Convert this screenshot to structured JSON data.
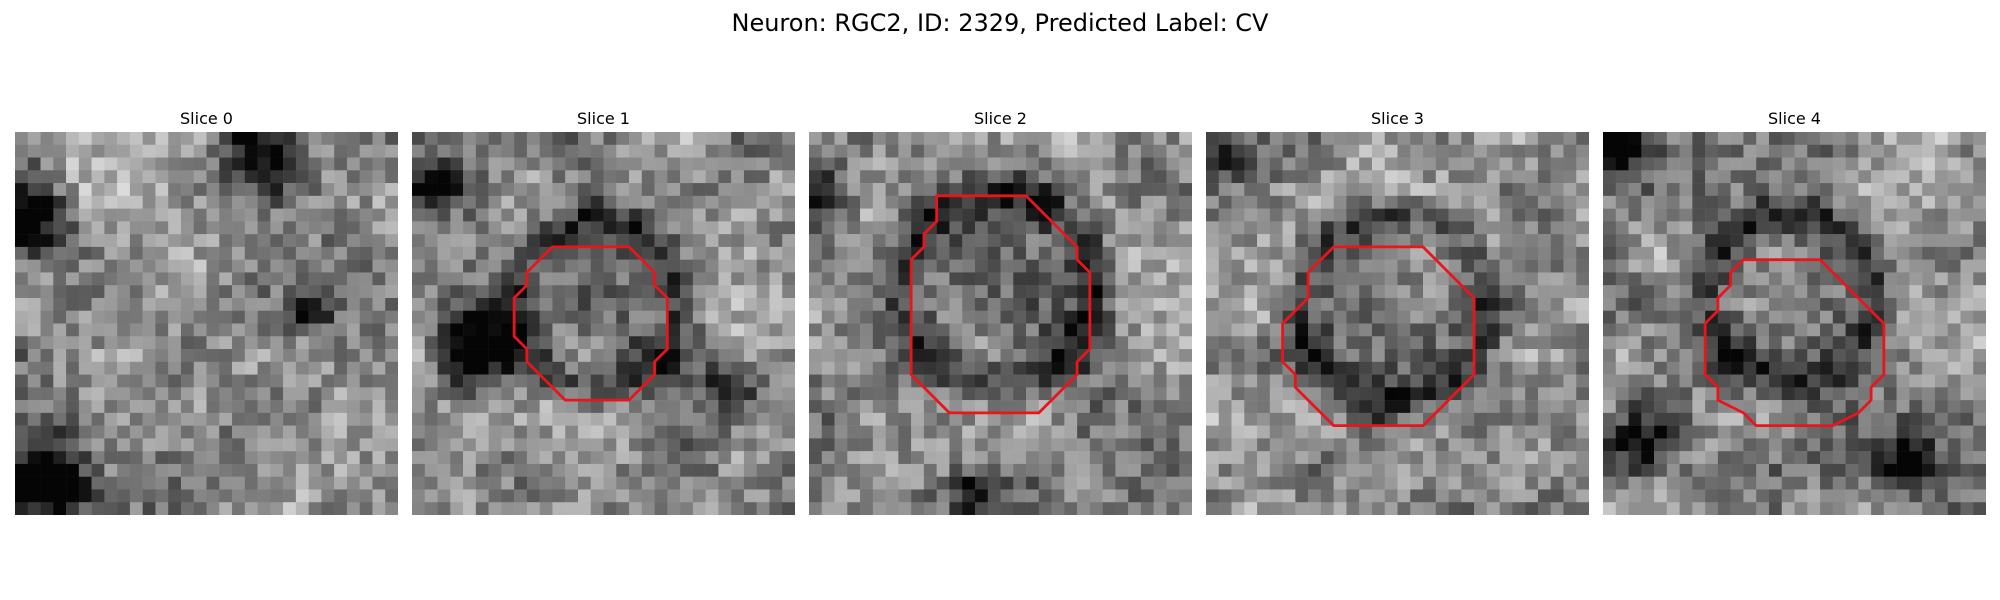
{
  "figure": {
    "title": "Neuron: RGC2, ID: 2329, Predicted Label: CV",
    "contour_color": "#e8161c",
    "colormap": "grayscale"
  },
  "panels": [
    {
      "title": "Slice 0",
      "has_contour": false,
      "image": "grayscale-microscopy-slice"
    },
    {
      "title": "Slice 1",
      "has_contour": true,
      "image": "grayscale-microscopy-slice"
    },
    {
      "title": "Slice 2",
      "has_contour": true,
      "image": "grayscale-microscopy-slice"
    },
    {
      "title": "Slice 3",
      "has_contour": true,
      "image": "grayscale-microscopy-slice"
    },
    {
      "title": "Slice 4",
      "has_contour": true,
      "image": "grayscale-microscopy-slice"
    }
  ]
}
